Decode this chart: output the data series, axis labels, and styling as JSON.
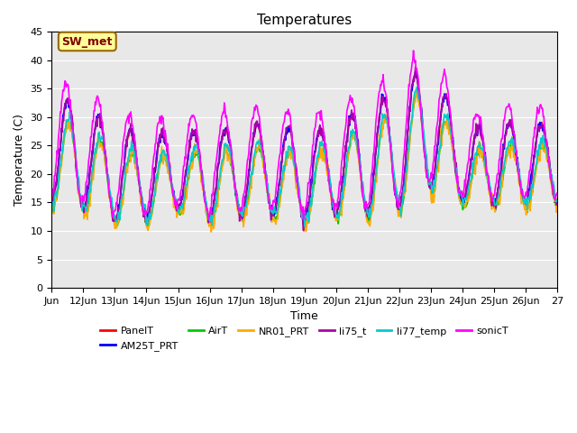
{
  "title": "Temperatures",
  "xlabel": "Time",
  "ylabel": "Temperature (C)",
  "ylim": [
    0,
    45
  ],
  "background_color": "#ffffff",
  "plot_bg_color": "#e8e8e8",
  "series_order": [
    "PanelT",
    "AM25T_PRT",
    "AirT",
    "NR01_PRT",
    "li75_t",
    "li77_temp",
    "sonicT"
  ],
  "series": {
    "PanelT": {
      "color": "#ff0000",
      "lw": 1.2
    },
    "AM25T_PRT": {
      "color": "#0000ff",
      "lw": 1.2
    },
    "AirT": {
      "color": "#00cc00",
      "lw": 1.2
    },
    "NR01_PRT": {
      "color": "#ffaa00",
      "lw": 1.2
    },
    "li75_t": {
      "color": "#aa00aa",
      "lw": 1.2
    },
    "li77_temp": {
      "color": "#00cccc",
      "lw": 1.2
    },
    "sonicT": {
      "color": "#ff00ff",
      "lw": 1.2
    }
  },
  "annotation_text": "SW_met",
  "annotation_bg": "#ffff99",
  "annotation_border": "#996600",
  "x_tick_labels": [
    "Jun",
    "12Jun",
    "13Jun",
    "14Jun",
    "15Jun",
    "16Jun",
    "17Jun",
    "18Jun",
    "19Jun",
    "20Jun",
    "21Jun",
    "22Jun",
    "23Jun",
    "24Jun",
    "25Jun",
    "26Jun",
    "27"
  ],
  "yticks": [
    0,
    5,
    10,
    15,
    20,
    25,
    30,
    35,
    40,
    45
  ],
  "n_days": 16,
  "day_envelope_min": [
    15,
    14,
    12,
    12,
    14,
    12,
    13,
    13,
    12,
    13,
    13,
    14,
    18,
    15,
    15,
    15
  ],
  "day_envelope_max": [
    34,
    32,
    28,
    27,
    27,
    28,
    28,
    29,
    27,
    29,
    32,
    35,
    40,
    27,
    29,
    29
  ]
}
